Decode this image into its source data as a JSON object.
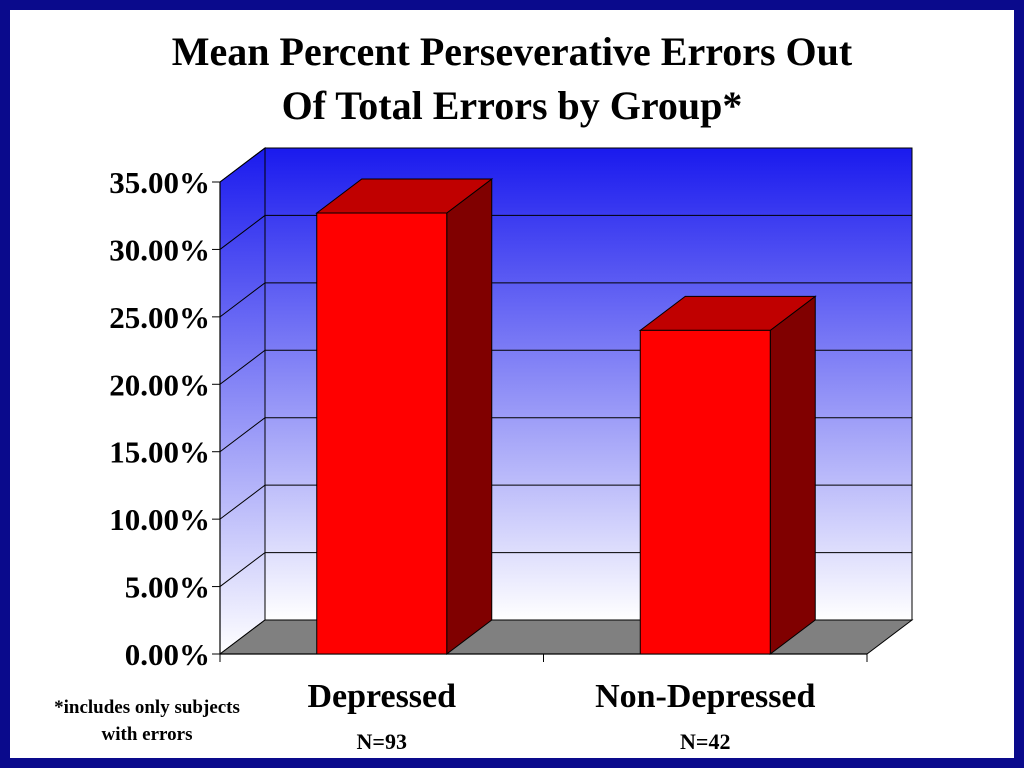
{
  "slide": {
    "title_line1": "Mean Percent Perseverative Errors Out",
    "title_line2": "Of Total Errors by Group*",
    "footnote_line1": "*includes only subjects",
    "footnote_line2": "with errors"
  },
  "colors": {
    "frame": "#0a0a8c",
    "wall_top": "#1a1aee",
    "wall_bottom": "#ffffff",
    "floor": "#808080",
    "bar_front": "#ff0000",
    "bar_top": "#c00000",
    "bar_side": "#800000"
  },
  "chart_data": {
    "type": "bar",
    "style": "3d-column",
    "categories": [
      "Depressed",
      "Non-Depressed"
    ],
    "sample_sizes": [
      "N=93",
      "N=42"
    ],
    "values": [
      0.327,
      0.24
    ],
    "ylim": [
      0,
      0.35
    ],
    "yticks": [
      0,
      0.05,
      0.1,
      0.15,
      0.2,
      0.25,
      0.3,
      0.35
    ],
    "ytick_labels": [
      "0.00%",
      "5.00%",
      "10.00%",
      "15.00%",
      "20.00%",
      "25.00%",
      "30.00%",
      "35.00%"
    ],
    "grid": true,
    "legend": "none"
  }
}
